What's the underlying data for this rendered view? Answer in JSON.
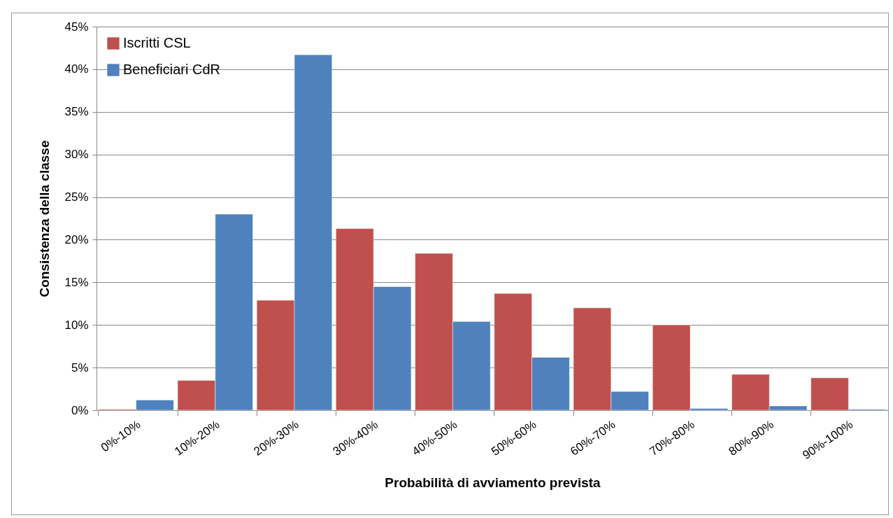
{
  "chart_data": {
    "type": "bar",
    "xlabel": "Probabilità di avviamento prevista",
    "ylabel": "Consistenza della classe",
    "categories": [
      "0%-10%",
      "10%-20%",
      "20%-30%",
      "30%-40%",
      "40%-50%",
      "50%-60%",
      "60%-70%",
      "70%-80%",
      "80%-90%",
      "90%-100%"
    ],
    "series": [
      {
        "name": "Iscritti CSL",
        "color": "#c0504d",
        "values": [
          0.1,
          3.5,
          12.9,
          21.3,
          18.4,
          13.7,
          12.0,
          10.0,
          4.2,
          3.8
        ]
      },
      {
        "name": "Beneficiari  CdR",
        "color": "#4f81bd",
        "values": [
          1.2,
          23.0,
          41.7,
          14.5,
          10.4,
          6.2,
          2.2,
          0.2,
          0.5,
          0.1
        ]
      }
    ],
    "ylim": [
      0,
      45
    ],
    "yticks": [
      {
        "value": 0,
        "label": "0%"
      },
      {
        "value": 5,
        "label": "5%"
      },
      {
        "value": 10,
        "label": "10%"
      },
      {
        "value": 15,
        "label": "15%"
      },
      {
        "value": 20,
        "label": "20%"
      },
      {
        "value": 25,
        "label": "25%"
      },
      {
        "value": 30,
        "label": "30%"
      },
      {
        "value": 35,
        "label": "35%"
      },
      {
        "value": 40,
        "label": "40%"
      },
      {
        "value": 45,
        "label": "45%"
      }
    ],
    "grid": "y",
    "legend": "top left"
  }
}
